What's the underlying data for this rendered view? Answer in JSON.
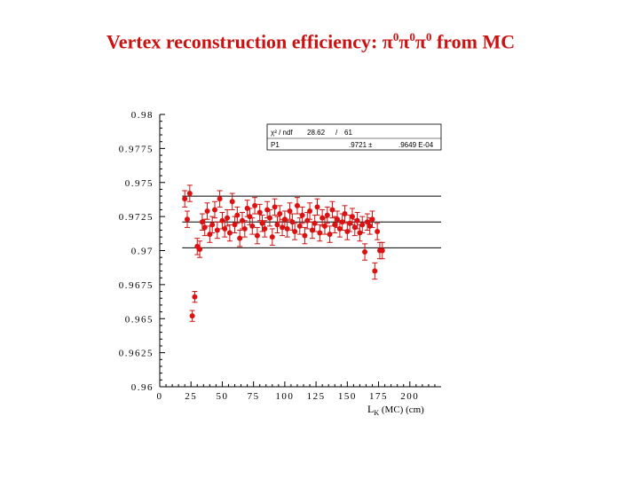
{
  "title": {
    "prefix": "Vertex reconstruction efficiency: ",
    "pi": "π",
    "sup": "0",
    "suffix": " from MC"
  },
  "colors": {
    "marker": "#dd1111",
    "title": "#cc1111"
  },
  "stats_box": {
    "row1_label": "χ² / ndf",
    "row1_value": "28.62",
    "row1_sep": "/",
    "row1_ndf": "61",
    "row2_label": "P1",
    "row2_value": ".9721",
    "row2_pm": "±",
    "row2_error": ".9649 E-04"
  },
  "chart_data": {
    "type": "scatter",
    "title": "Vertex reconstruction efficiency: π0π0π0 from MC",
    "xlabel_main": "L",
    "xlabel_sub": "K",
    "xlabel_unit": " (MC)   (cm)",
    "ylabel": "",
    "xlim": [
      0,
      225
    ],
    "ylim": [
      0.96,
      0.98
    ],
    "x_ticks": [
      "0",
      "25",
      "50",
      "75",
      "100",
      "125",
      "150",
      "175",
      "200"
    ],
    "y_ticks": [
      "0.96",
      "0.9625",
      "0.965",
      "0.9675",
      "0.97",
      "0.9725",
      "0.975",
      "0.9775",
      "0.98"
    ],
    "fit_value": 0.9721,
    "band": [
      0.9702,
      0.974
    ],
    "x": [
      20,
      22,
      24,
      26,
      28,
      30,
      32,
      34,
      36,
      38,
      40,
      42,
      44,
      46,
      48,
      50,
      52,
      54,
      56,
      58,
      60,
      62,
      64,
      66,
      68,
      70,
      72,
      74,
      76,
      78,
      80,
      82,
      84,
      86,
      88,
      90,
      92,
      94,
      96,
      98,
      100,
      102,
      104,
      106,
      108,
      110,
      112,
      114,
      116,
      118,
      120,
      122,
      124,
      126,
      128,
      130,
      132,
      134,
      136,
      138,
      140,
      142,
      144,
      146,
      148,
      150,
      152,
      154,
      156,
      158,
      160,
      162,
      164,
      166,
      168,
      170,
      172,
      174,
      176,
      178
    ],
    "y": [
      0.9738,
      0.9723,
      0.9742,
      0.9652,
      0.9666,
      0.9703,
      0.9701,
      0.9721,
      0.9717,
      0.9729,
      0.9712,
      0.9719,
      0.973,
      0.9715,
      0.9738,
      0.9722,
      0.9716,
      0.9724,
      0.9713,
      0.9736,
      0.9719,
      0.9726,
      0.9709,
      0.9722,
      0.9716,
      0.9731,
      0.9725,
      0.9718,
      0.9733,
      0.9711,
      0.9728,
      0.972,
      0.9716,
      0.973,
      0.9724,
      0.971,
      0.9732,
      0.9719,
      0.9727,
      0.9717,
      0.9723,
      0.9716,
      0.9729,
      0.9721,
      0.9714,
      0.9733,
      0.9718,
      0.9726,
      0.9711,
      0.9722,
      0.9729,
      0.9715,
      0.972,
      0.9732,
      0.9713,
      0.9724,
      0.9718,
      0.9726,
      0.9712,
      0.973,
      0.9719,
      0.9723,
      0.9716,
      0.9721,
      0.9727,
      0.9714,
      0.972,
      0.9725,
      0.9717,
      0.9722,
      0.9713,
      0.9719,
      0.9699,
      0.9721,
      0.9718,
      0.9723,
      0.9685,
      0.9714,
      0.97,
      0.97
    ],
    "err": [
      0.0006,
      0.0006,
      0.0006,
      0.0004,
      0.0004,
      0.0006,
      0.0006,
      0.0006,
      0.0006,
      0.0006,
      0.0006,
      0.0006,
      0.0006,
      0.0006,
      0.0006,
      0.0006,
      0.0006,
      0.0006,
      0.0006,
      0.0006,
      0.0006,
      0.0006,
      0.0006,
      0.0006,
      0.0006,
      0.0006,
      0.0006,
      0.0006,
      0.0006,
      0.0006,
      0.0006,
      0.0006,
      0.0006,
      0.0006,
      0.0006,
      0.0006,
      0.0006,
      0.0006,
      0.0006,
      0.0006,
      0.0006,
      0.0006,
      0.0006,
      0.0006,
      0.0006,
      0.0006,
      0.0006,
      0.0006,
      0.0006,
      0.0006,
      0.0006,
      0.0006,
      0.0006,
      0.0006,
      0.0006,
      0.0006,
      0.0006,
      0.0006,
      0.0006,
      0.0006,
      0.0006,
      0.0006,
      0.0006,
      0.0006,
      0.0006,
      0.0006,
      0.0006,
      0.0006,
      0.0006,
      0.0006,
      0.0006,
      0.0006,
      0.0006,
      0.0006,
      0.0006,
      0.0006,
      0.0006,
      0.0006,
      0.0006,
      0.0006
    ]
  }
}
